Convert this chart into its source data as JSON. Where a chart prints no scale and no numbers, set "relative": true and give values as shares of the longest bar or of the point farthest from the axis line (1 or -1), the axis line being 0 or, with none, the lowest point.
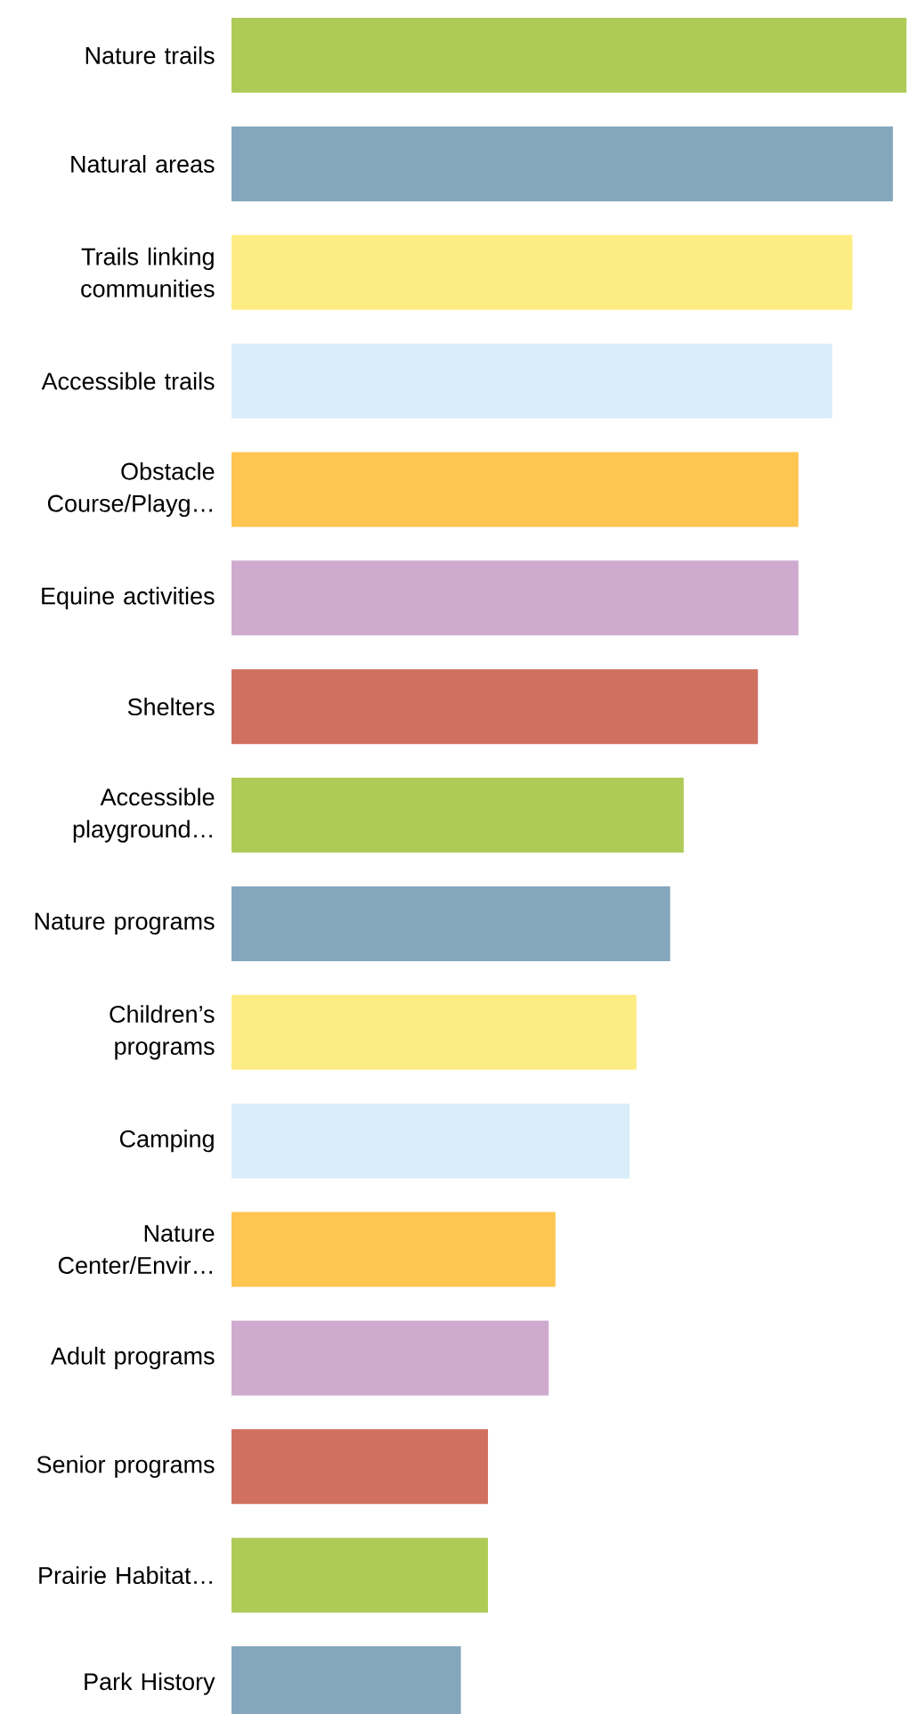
{
  "chart_data": {
    "type": "bar",
    "orientation": "horizontal",
    "relative": true,
    "categories": [
      "Nature trails",
      "Natural areas",
      "Trails linking communities",
      "Accessible trails",
      "Obstacle Course/Playg…",
      "Equine activities",
      "Shelters",
      "Accessible playground…",
      "Nature programs",
      "Children’s programs",
      "Camping",
      "Nature Center/Envir…",
      "Adult programs",
      "Senior programs",
      "Prairie Habitat…",
      "Park History"
    ],
    "values": [
      1,
      0.98,
      0.92,
      0.89,
      0.84,
      0.84,
      0.78,
      0.67,
      0.65,
      0.6,
      0.59,
      0.48,
      0.47,
      0.38,
      0.38,
      0.34
    ],
    "colors": [
      "#aecb57",
      "#85a7bd",
      "#fdec83",
      "#d9eefa",
      "#fec551",
      "#cfaacf",
      "#d0705f",
      "#aecb57",
      "#85a7bd",
      "#fdec83",
      "#d9eefa",
      "#fec551",
      "#cfaacf",
      "#d0705f",
      "#aecb57",
      "#85a7bd"
    ]
  }
}
